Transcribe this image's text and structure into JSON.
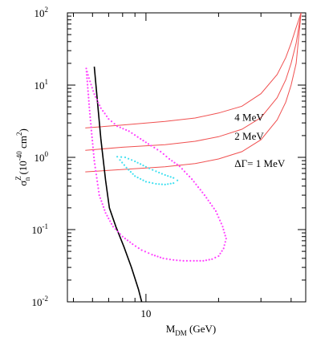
{
  "chart_data": {
    "type": "line",
    "xlabel_main": "M",
    "xlabel_sub": "DM",
    "xlabel_unit": " (GeV)",
    "ylabel_main": "σ",
    "ylabel_sup": "Z",
    "ylabel_sub": "n",
    "ylabel_unit": " (10",
    "ylabel_exp": "-40",
    "ylabel_unit2": " cm",
    "ylabel_exp2": "2",
    "ylabel_close": ")",
    "x_scale": "log",
    "y_scale": "log",
    "xlim": [
      4.72,
      46.0
    ],
    "ylim": [
      0.01,
      100
    ],
    "x_tick_labels": [
      {
        "v": 10,
        "label": "10"
      }
    ],
    "y_tick_labels": [
      {
        "v": 0.01,
        "base": "10",
        "exp": "-2"
      },
      {
        "v": 0.1,
        "base": "10",
        "exp": "-1"
      },
      {
        "v": 1,
        "base": "10",
        "exp": "0"
      },
      {
        "v": 10,
        "base": "10",
        "exp": "1"
      },
      {
        "v": 100,
        "base": "10",
        "exp": "2"
      }
    ],
    "annotations": [
      {
        "text": "4 MeV",
        "x": 23.3,
        "y": 3.2
      },
      {
        "text": "2 MeV",
        "x": 23.3,
        "y": 1.75
      },
      {
        "text": "ΔΓ= 1 MeV",
        "x": 23.3,
        "y": 0.74
      }
    ],
    "series": [
      {
        "style": "solid",
        "color": "#f05050",
        "x": [
          5.6,
          8,
          12,
          16,
          20,
          25,
          30,
          35,
          38,
          40,
          42,
          44
        ],
        "y": [
          2.55,
          2.8,
          3.15,
          3.5,
          4.1,
          5.1,
          7.6,
          14,
          24,
          38,
          63,
          100
        ]
      },
      {
        "style": "solid",
        "color": "#f05050",
        "x": [
          5.6,
          8,
          12,
          16,
          20,
          25,
          30,
          35,
          38,
          40,
          42,
          44
        ],
        "y": [
          1.25,
          1.38,
          1.5,
          1.67,
          1.93,
          2.45,
          3.55,
          6.7,
          11.8,
          20,
          38,
          100
        ]
      },
      {
        "style": "solid",
        "color": "#f05050",
        "x": [
          5.6,
          8,
          12,
          16,
          20,
          25,
          30,
          35,
          38,
          40,
          42,
          44
        ],
        "y": [
          0.63,
          0.68,
          0.74,
          0.82,
          0.95,
          1.2,
          1.75,
          3.3,
          5.8,
          10,
          20,
          100
        ]
      },
      {
        "style": "solid",
        "color": "#000000",
        "x": [
          6.1,
          6.3,
          6.5,
          6.8,
          7.05,
          7.5,
          8.1,
          8.7,
          9.3,
          9.6
        ],
        "y": [
          18,
          5.5,
          1.8,
          0.48,
          0.2,
          0.11,
          0.058,
          0.03,
          0.015,
          0.01
        ]
      },
      {
        "style": "dotted",
        "color": "#ff40ff",
        "x": [
          5.65,
          5.8,
          6.1,
          6.5,
          7.0,
          7.6,
          8.5,
          9.5,
          10.5,
          11.5,
          12.5,
          13.8,
          15.5,
          17.5,
          19.5,
          20.8,
          21.5,
          21.0,
          20.0,
          18.8,
          17.3,
          15.8,
          14.3,
          13.0,
          11.8,
          10.6,
          9.6,
          8.8,
          8.0,
          7.3,
          6.8,
          6.4,
          6.1,
          5.85,
          5.65
        ],
        "y": [
          17,
          12.5,
          7.5,
          4.8,
          3.4,
          2.7,
          2.3,
          1.8,
          1.45,
          1.2,
          0.95,
          0.75,
          0.5,
          0.3,
          0.18,
          0.11,
          0.075,
          0.055,
          0.043,
          0.039,
          0.037,
          0.037,
          0.037,
          0.038,
          0.04,
          0.045,
          0.052,
          0.063,
          0.08,
          0.11,
          0.17,
          0.3,
          0.9,
          4,
          17
        ]
      },
      {
        "style": "dotted",
        "color": "#40e0f0",
        "x": [
          7.6,
          8.2,
          9.0,
          10.0,
          11.0,
          12.0,
          13.0,
          13.5,
          13.0,
          12.0,
          11.0,
          10.0,
          9.0,
          8.3,
          7.8,
          7.6
        ],
        "y": [
          1.02,
          1.0,
          0.88,
          0.74,
          0.64,
          0.57,
          0.52,
          0.48,
          0.44,
          0.42,
          0.43,
          0.46,
          0.55,
          0.72,
          0.92,
          1.02
        ]
      }
    ]
  }
}
